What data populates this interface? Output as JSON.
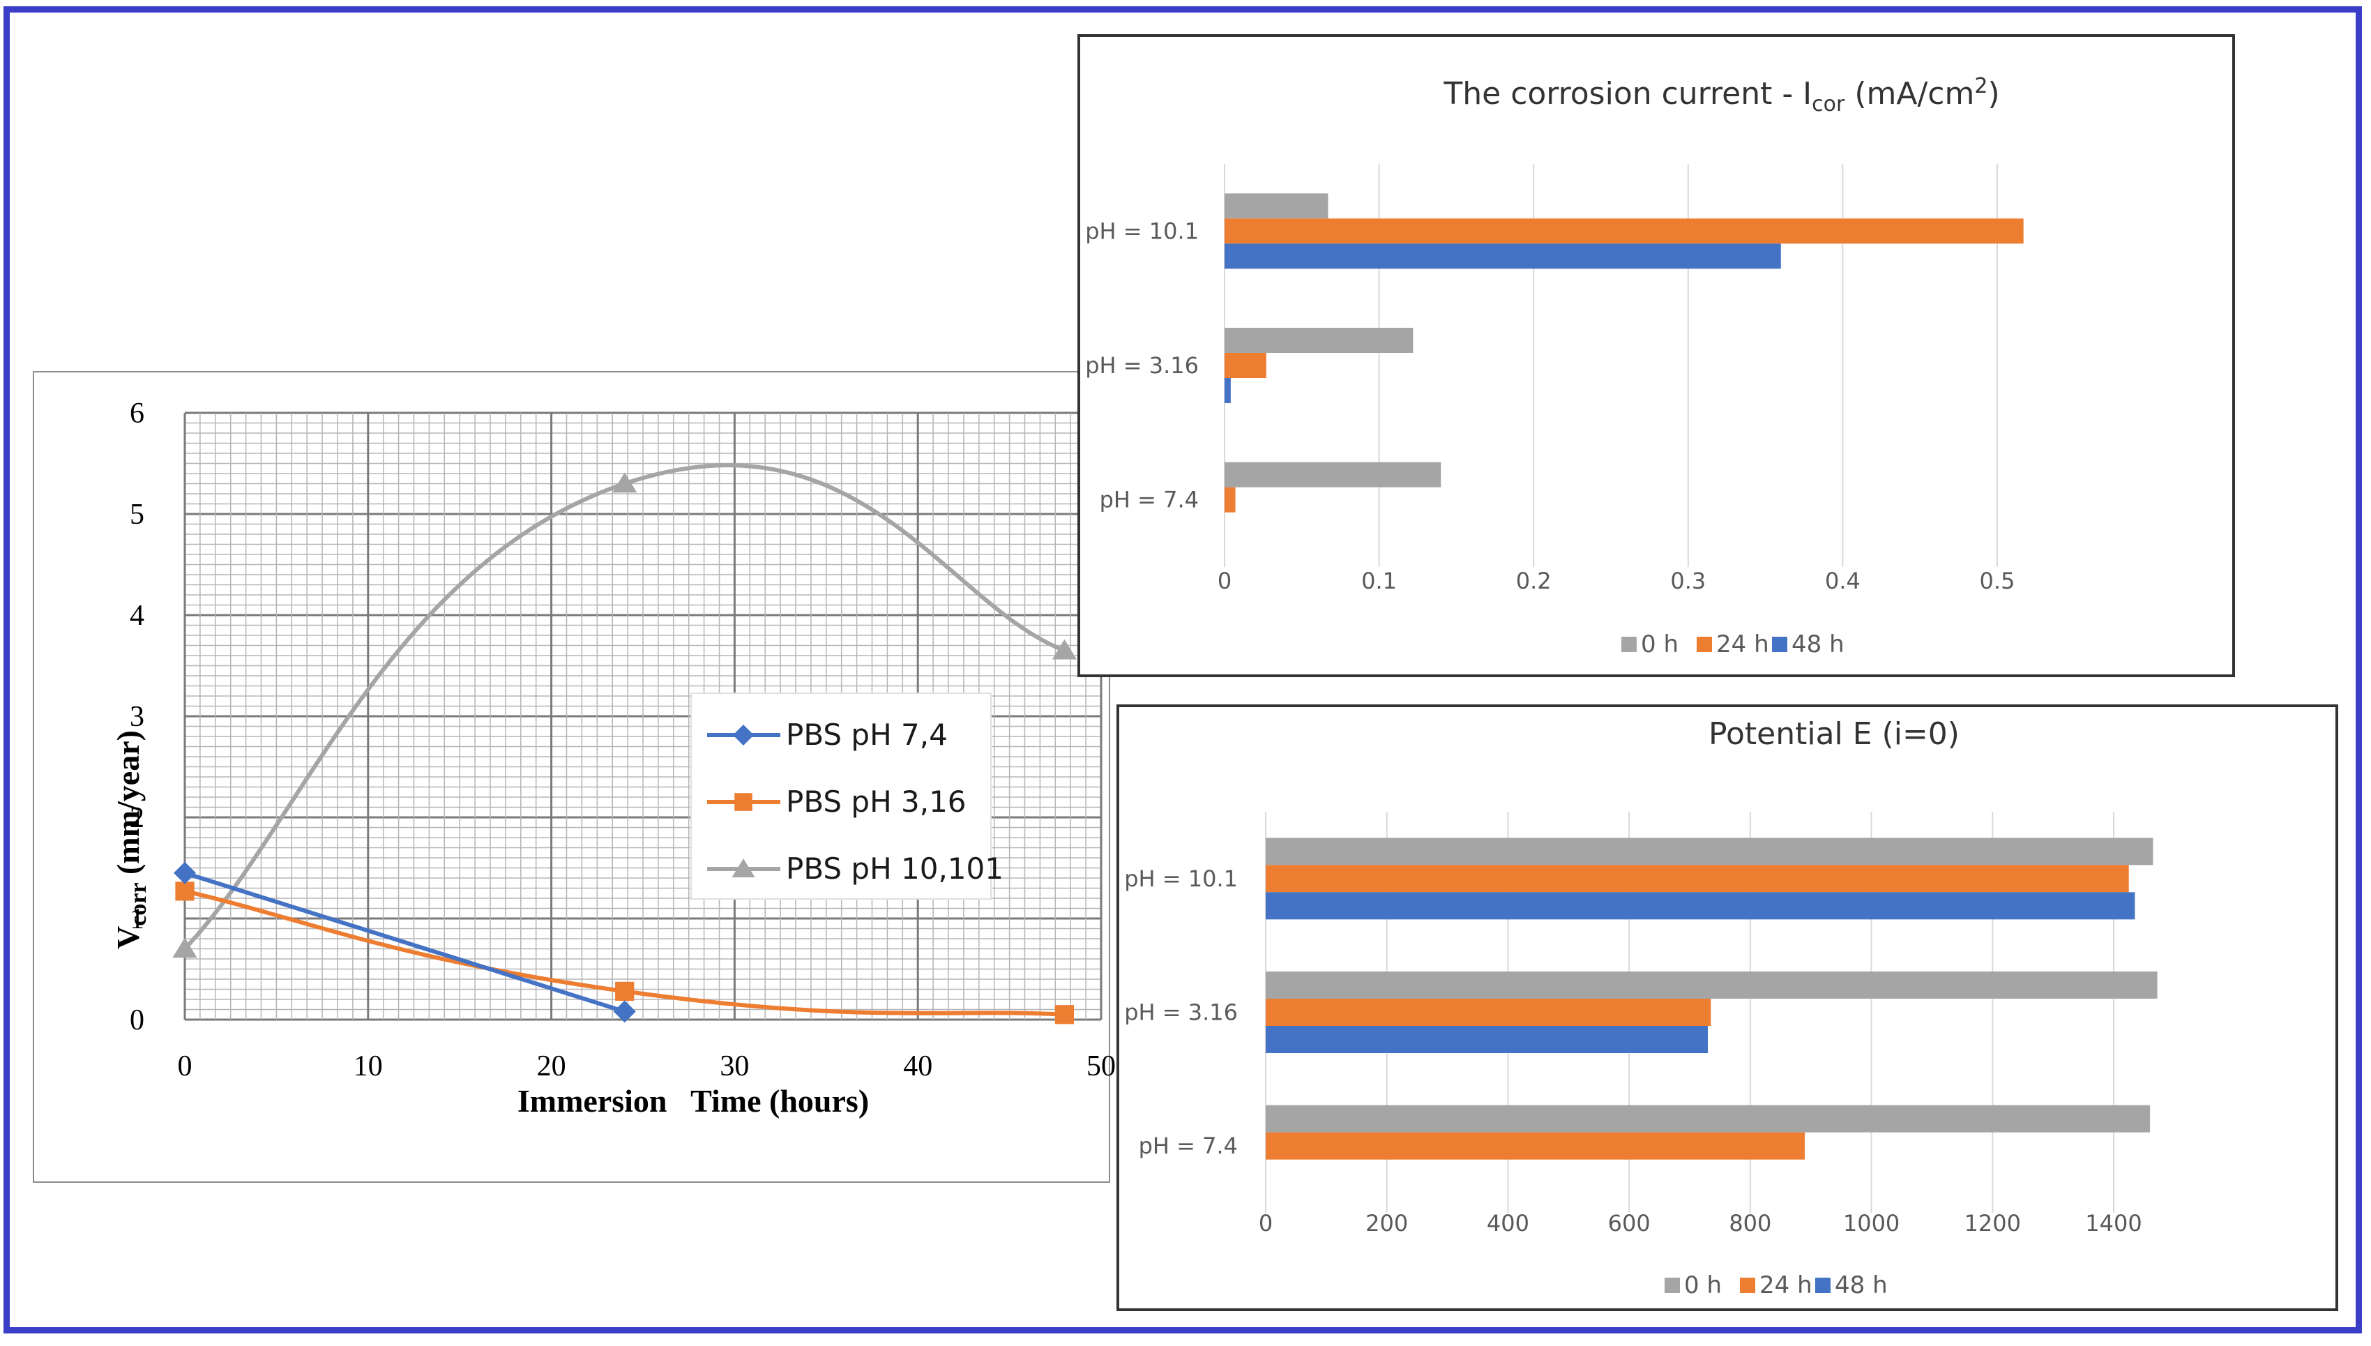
{
  "chart_data": [
    {
      "type": "line",
      "xlabel": "Immersion   Time (hours)",
      "ylabel": "V",
      "ylabel_sub": "corr",
      "ylabel_rest": " (mm/year)",
      "xlim": [
        0,
        50
      ],
      "ylim": [
        0,
        6
      ],
      "x_ticks": [
        "0",
        "10",
        "20",
        "30",
        "40",
        "50"
      ],
      "y_ticks": [
        "0",
        "1",
        "2",
        "3",
        "4",
        "5",
        "6"
      ],
      "grid": true,
      "legend_position": "center-right",
      "series": [
        {
          "name": "PBS pH 7,4",
          "color": "#4472c4",
          "marker": "diamond",
          "x": [
            0,
            24
          ],
          "y": [
            1.45,
            0.08
          ]
        },
        {
          "name": "PBS pH 3,16",
          "color": "#ed7d31",
          "marker": "square",
          "x": [
            0,
            24,
            48
          ],
          "y": [
            1.27,
            0.28,
            0.05
          ]
        },
        {
          "name": "PBS pH 10,101",
          "color": "#a5a5a5",
          "marker": "triangle",
          "x": [
            0,
            24,
            48
          ],
          "y": [
            0.7,
            5.3,
            3.65
          ]
        }
      ]
    },
    {
      "type": "bar",
      "orientation": "horizontal",
      "title_main": "The corrosion current - I",
      "title_sub": "cor",
      "title_rest": " (mA/cm",
      "title_sup": "2",
      "title_end": ")",
      "categories": [
        "pH = 10.1",
        "pH = 3.16",
        "pH = 7.4"
      ],
      "xlim": [
        0,
        0.5
      ],
      "x_ticks": [
        "0",
        "0.1",
        "0.2",
        "0.3",
        "0.4",
        "0.5"
      ],
      "grid": true,
      "legend_position": "bottom",
      "series": [
        {
          "name": "0 h",
          "color": "#a5a5a5",
          "values": [
            0.067,
            0.122,
            0.14
          ]
        },
        {
          "name": "24 h",
          "color": "#ed7d31",
          "values": [
            0.517,
            0.027,
            0.007
          ]
        },
        {
          "name": "48 h",
          "color": "#4472c4",
          "values": [
            0.36,
            0.004,
            0
          ]
        }
      ]
    },
    {
      "type": "bar",
      "orientation": "horizontal",
      "title": "Potential E (i=0)",
      "categories": [
        "pH = 10.1",
        "pH = 3.16",
        "pH = 7.4"
      ],
      "xlim": [
        0,
        1400
      ],
      "x_ticks": [
        "0",
        "200",
        "400",
        "600",
        "800",
        "1000",
        "1200",
        "1400"
      ],
      "grid": true,
      "legend_position": "bottom",
      "series": [
        {
          "name": "0 h",
          "color": "#a5a5a5",
          "values": [
            1465,
            1472,
            1460
          ]
        },
        {
          "name": "24 h",
          "color": "#ed7d31",
          "values": [
            1425,
            735,
            890
          ]
        },
        {
          "name": "48 h",
          "color": "#4472c4",
          "values": [
            1435,
            730,
            0
          ]
        }
      ]
    }
  ]
}
